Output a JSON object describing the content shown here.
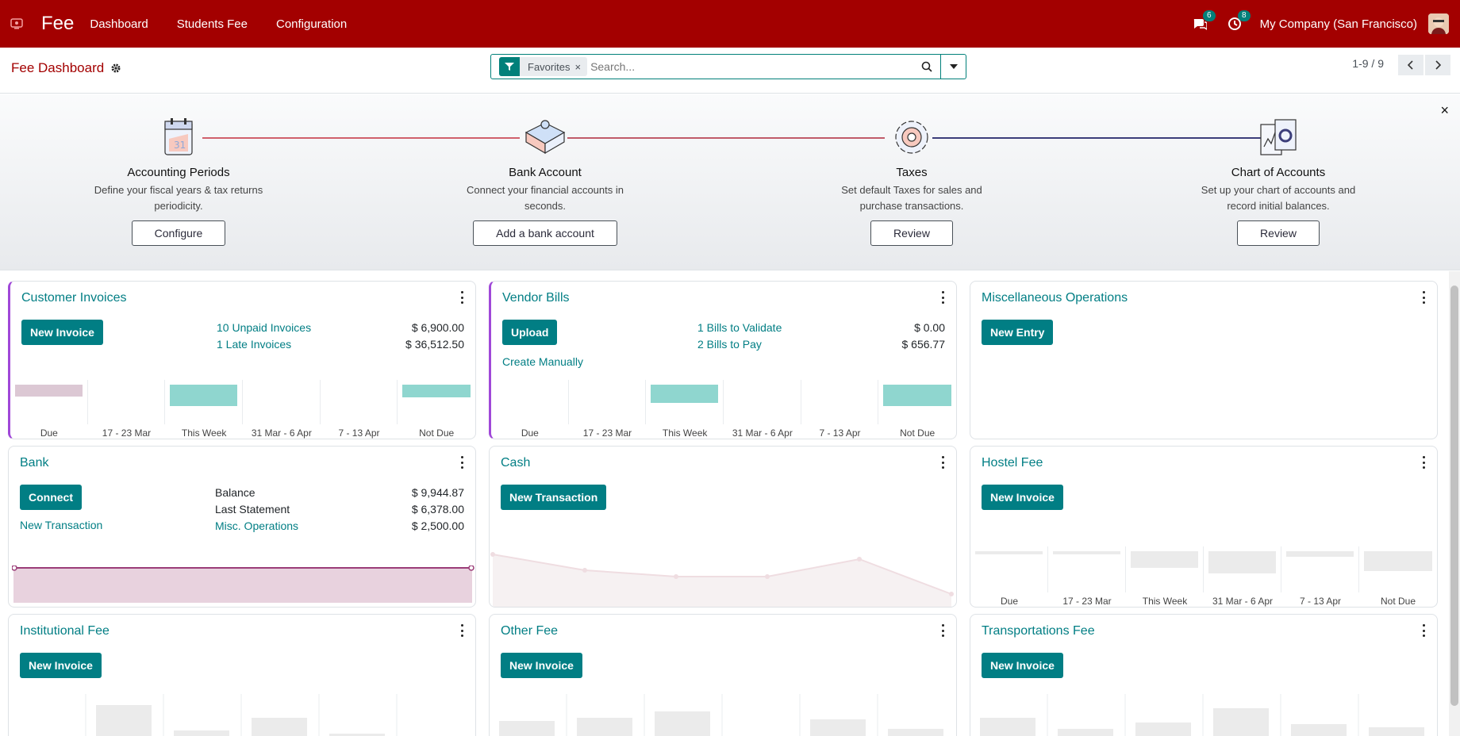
{
  "navbar": {
    "brand": "Fee",
    "menu": [
      "Dashboard",
      "Students Fee",
      "Configuration"
    ],
    "messages_count": "6",
    "activities_count": "8",
    "company": "My Company (San Francisco)"
  },
  "control_panel": {
    "breadcrumb": "Fee Dashboard",
    "facet_label": "Favorites",
    "facet_remove": "×",
    "search_placeholder": "Search...",
    "pager": "1-9 / 9"
  },
  "onboarding": {
    "close": "×",
    "steps": [
      {
        "title": "Accounting Periods",
        "desc": "Define your fiscal years & tax returns periodicity.",
        "button": "Configure"
      },
      {
        "title": "Bank Account",
        "desc": "Connect your financial accounts in seconds.",
        "button": "Add a bank account"
      },
      {
        "title": "Taxes",
        "desc": "Set default Taxes for sales and purchase transactions.",
        "button": "Review"
      },
      {
        "title": "Chart of Accounts",
        "desc": "Set up your chart of accounts and record initial balances.",
        "button": "Review"
      }
    ]
  },
  "colors": {
    "brand": "#a30000",
    "accent": "#017e84",
    "purple": "#a048d8"
  },
  "cards": {
    "customer_invoices": {
      "title": "Customer Invoices",
      "button": "New Invoice",
      "rows": [
        {
          "label": "10 Unpaid Invoices",
          "value": "$ 6,900.00"
        },
        {
          "label": "1 Late Invoices",
          "value": "$ 36,512.50"
        }
      ],
      "chart_data": {
        "type": "bar",
        "categories": [
          "Due",
          "17 - 23 Mar",
          "This Week",
          "31 Mar - 6 Apr",
          "7 - 13 Apr",
          "Not Due"
        ],
        "values": [
          6900,
          0,
          12000,
          0,
          0,
          7000
        ]
      }
    },
    "vendor_bills": {
      "title": "Vendor Bills",
      "button": "Upload",
      "extra_link": "Create Manually",
      "rows": [
        {
          "label": "1 Bills to Validate",
          "value": "$ 0.00"
        },
        {
          "label": "2 Bills to Pay",
          "value": "$ 656.77"
        }
      ],
      "chart_data": {
        "type": "bar",
        "categories": [
          "Due",
          "17 - 23 Mar",
          "This Week",
          "31 Mar - 6 Apr",
          "7 - 13 Apr",
          "Not Due"
        ],
        "values": [
          0,
          0,
          300,
          0,
          0,
          356
        ]
      }
    },
    "misc_operations": {
      "title": "Miscellaneous Operations",
      "button": "New Entry"
    },
    "bank": {
      "title": "Bank",
      "button": "Connect",
      "extra_link": "New Transaction",
      "rows": [
        {
          "label": "Balance",
          "value": "$ 9,944.87",
          "link": false
        },
        {
          "label": "Last Statement",
          "value": "$ 6,378.00",
          "link": false
        },
        {
          "label": "Misc. Operations",
          "value": "$ 2,500.00",
          "link": true
        }
      ]
    },
    "cash": {
      "title": "Cash",
      "button": "New Transaction"
    },
    "hostel_fee": {
      "title": "Hostel Fee",
      "button": "New Invoice",
      "chart_data": {
        "type": "bar",
        "categories": [
          "Due",
          "17 - 23 Mar",
          "This Week",
          "31 Mar - 6 Apr",
          "7 - 13 Apr",
          "Not Due"
        ],
        "values": [
          3,
          5,
          28,
          38,
          9,
          33
        ]
      }
    },
    "institutional_fee": {
      "title": "Institutional Fee",
      "button": "New Invoice"
    },
    "other_fee": {
      "title": "Other Fee",
      "button": "New Invoice"
    },
    "transportations_fee": {
      "title": "Transportations Fee",
      "button": "New Invoice"
    }
  }
}
